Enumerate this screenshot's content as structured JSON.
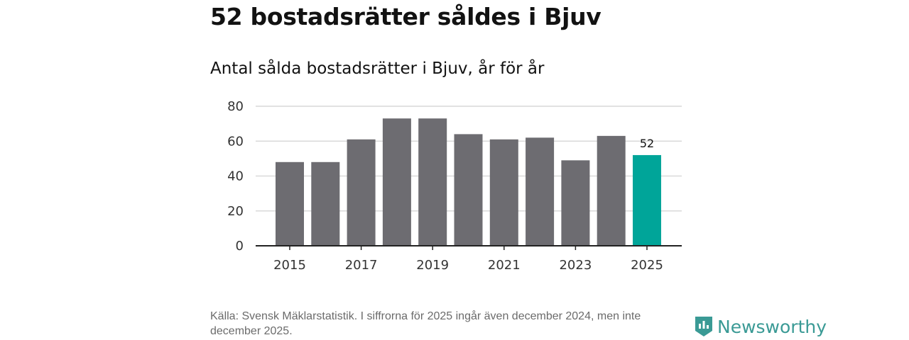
{
  "title": "52 bostadsrätter såldes i Bjuv",
  "subtitle": "Antal sålda bostadsrätter i Bjuv, år för år",
  "source": "Källa: Svensk Mäklarstatistik. I siffrorna för 2025 ingår även december 2024, men inte december 2025.",
  "logo_text": "Newsworthy",
  "colors": {
    "bar": "#6d6c71",
    "highlight": "#00a599",
    "grid": "#d9d9d9"
  },
  "chart_data": {
    "type": "bar",
    "title": "Antal sålda bostadsrätter i Bjuv, år för år",
    "categories": [
      "2015",
      "2016",
      "2017",
      "2018",
      "2019",
      "2020",
      "2021",
      "2022",
      "2023",
      "2024",
      "2025"
    ],
    "values": [
      48,
      48,
      61,
      73,
      73,
      64,
      61,
      62,
      49,
      63,
      52
    ],
    "highlight_index": 10,
    "data_labels": {
      "10": "52"
    },
    "xtick_labels": [
      "2015",
      "2017",
      "2019",
      "2021",
      "2023",
      "2025"
    ],
    "yticks": [
      0,
      20,
      40,
      60,
      80
    ],
    "ylim": [
      0,
      80
    ],
    "xlabel": "",
    "ylabel": "",
    "grid": true
  }
}
